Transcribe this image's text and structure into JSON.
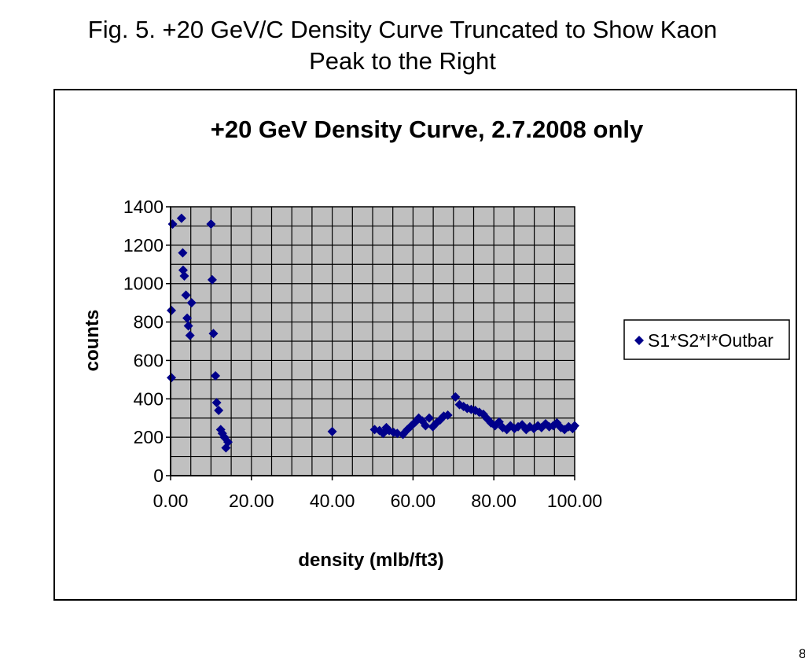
{
  "slide": {
    "title_line1": "Fig. 5.  +20 GeV/C Density Curve Truncated to Show Kaon",
    "title_line2": "Peak to the Right",
    "page_number": "8"
  },
  "chart_data": {
    "type": "scatter",
    "title": "+20 GeV Density Curve, 2.7.2008 only",
    "xlabel": "density (mlb/ft3)",
    "ylabel": "counts",
    "xlim": [
      0,
      100
    ],
    "ylim": [
      0,
      1400
    ],
    "x_ticks": [
      "0.00",
      "20.00",
      "40.00",
      "60.00",
      "80.00",
      "100.00"
    ],
    "y_ticks": [
      "0",
      "200",
      "400",
      "600",
      "800",
      "1000",
      "1200",
      "1400"
    ],
    "grid": true,
    "plot_background": "#c0c0c0",
    "legend_position": "right",
    "marker": "diamond",
    "series": [
      {
        "name": "S1*S2*I*Outbar",
        "color": "#00008b",
        "points": [
          [
            0.2,
            860
          ],
          [
            0.2,
            510
          ],
          [
            0.5,
            1310
          ],
          [
            2.7,
            1340
          ],
          [
            3.0,
            1160
          ],
          [
            3.1,
            1070
          ],
          [
            3.4,
            1040
          ],
          [
            3.8,
            940
          ],
          [
            4.1,
            820
          ],
          [
            4.4,
            780
          ],
          [
            4.8,
            730
          ],
          [
            5.2,
            900
          ],
          [
            10.0,
            1310
          ],
          [
            10.3,
            1020
          ],
          [
            10.6,
            740
          ],
          [
            11.1,
            520
          ],
          [
            11.4,
            380
          ],
          [
            11.9,
            340
          ],
          [
            12.4,
            240
          ],
          [
            12.8,
            220
          ],
          [
            13.3,
            200
          ],
          [
            13.7,
            145
          ],
          [
            14.2,
            175
          ],
          [
            40.0,
            230
          ],
          [
            50.5,
            240
          ],
          [
            51.7,
            235
          ],
          [
            52.6,
            220
          ],
          [
            53.4,
            250
          ],
          [
            54.1,
            235
          ],
          [
            55.2,
            225
          ],
          [
            56.1,
            220
          ],
          [
            57.5,
            215
          ],
          [
            58.6,
            240
          ],
          [
            59.6,
            260
          ],
          [
            60.6,
            280
          ],
          [
            61.4,
            300
          ],
          [
            62.3,
            285
          ],
          [
            63.1,
            260
          ],
          [
            64.0,
            300
          ],
          [
            64.9,
            255
          ],
          [
            65.8,
            275
          ],
          [
            66.7,
            290
          ],
          [
            67.6,
            310
          ],
          [
            68.6,
            315
          ],
          [
            70.5,
            410
          ],
          [
            71.5,
            370
          ],
          [
            72.5,
            360
          ],
          [
            73.4,
            350
          ],
          [
            74.4,
            345
          ],
          [
            75.4,
            340
          ],
          [
            76.4,
            330
          ],
          [
            77.4,
            320
          ],
          [
            78.4,
            295
          ],
          [
            79.3,
            275
          ],
          [
            80.3,
            260
          ],
          [
            81.3,
            280
          ],
          [
            82.2,
            250
          ],
          [
            83.2,
            240
          ],
          [
            84.1,
            260
          ],
          [
            85.1,
            245
          ],
          [
            86.0,
            255
          ],
          [
            87.0,
            265
          ],
          [
            88.0,
            240
          ],
          [
            88.9,
            255
          ],
          [
            89.9,
            245
          ],
          [
            90.9,
            260
          ],
          [
            91.8,
            250
          ],
          [
            92.8,
            270
          ],
          [
            93.7,
            255
          ],
          [
            94.7,
            260
          ],
          [
            95.6,
            275
          ],
          [
            96.6,
            250
          ],
          [
            97.5,
            240
          ],
          [
            98.5,
            255
          ],
          [
            99.5,
            245
          ],
          [
            100.0,
            260
          ]
        ]
      }
    ]
  }
}
